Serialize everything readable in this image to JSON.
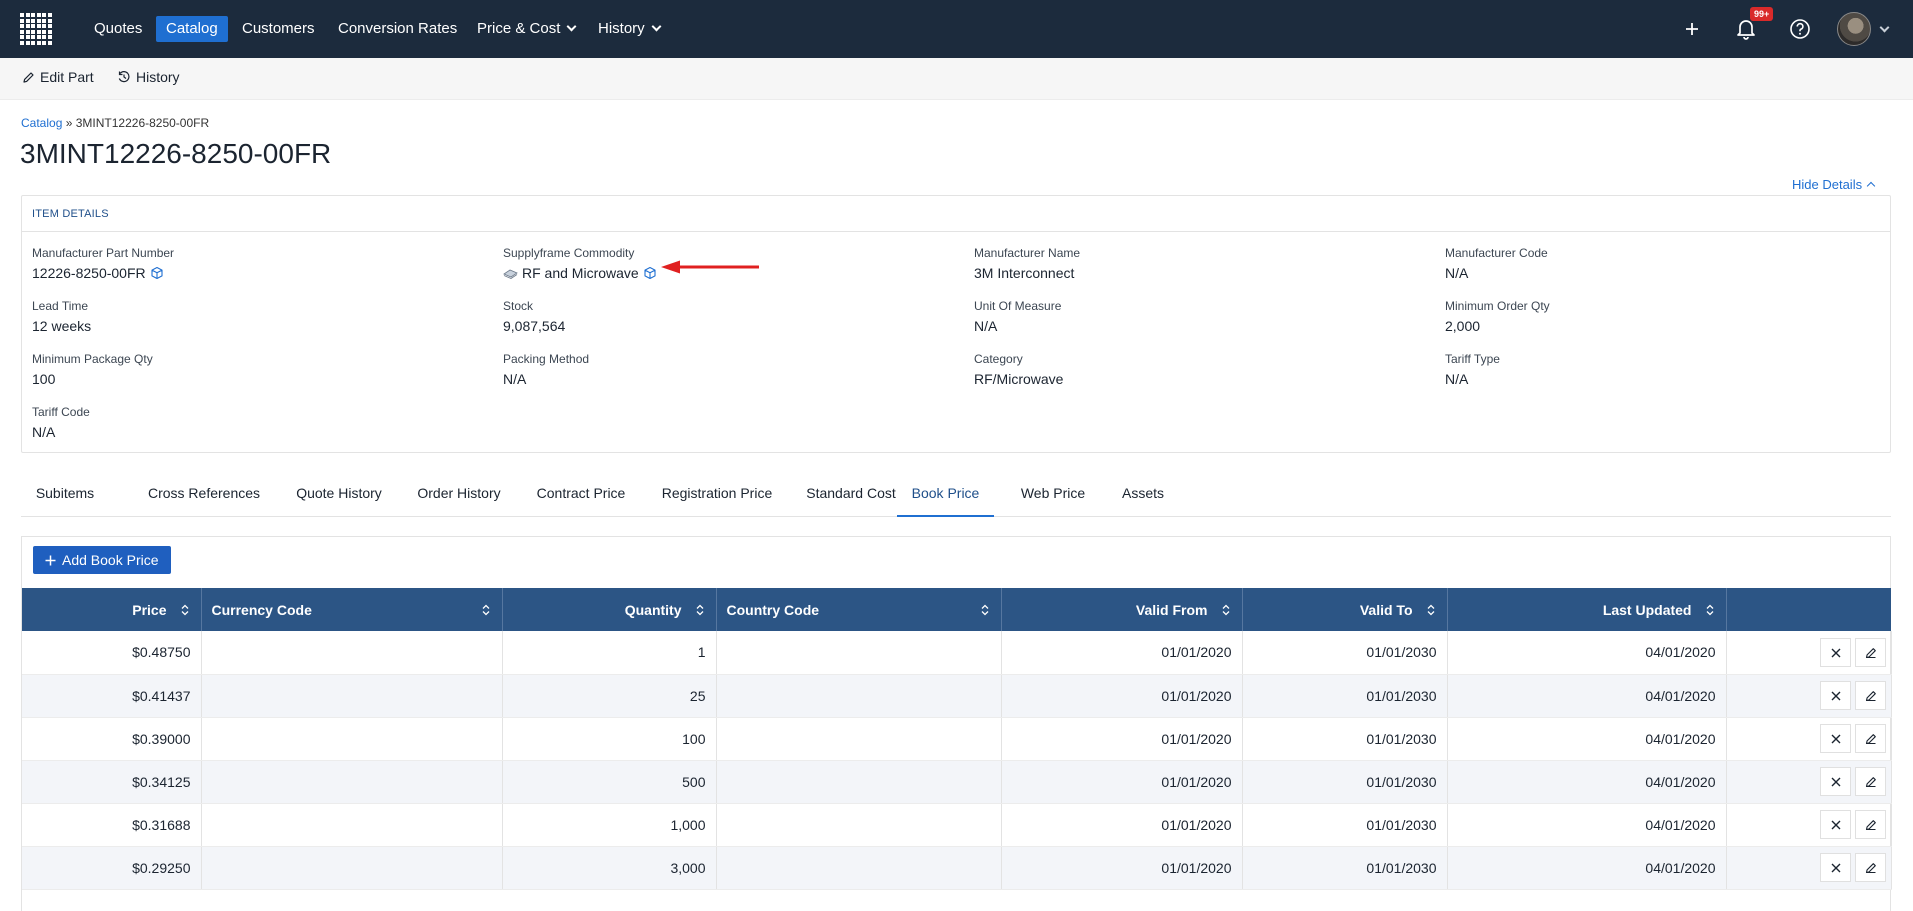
{
  "nav": {
    "items": [
      {
        "label": "Quotes",
        "active": false,
        "dropdown": false
      },
      {
        "label": "Catalog",
        "active": true,
        "dropdown": false
      },
      {
        "label": "Customers",
        "active": false,
        "dropdown": false
      },
      {
        "label": "Conversion Rates",
        "active": false,
        "dropdown": false
      },
      {
        "label": "Price & Cost",
        "active": false,
        "dropdown": true
      },
      {
        "label": "History",
        "active": false,
        "dropdown": true
      }
    ],
    "notification_badge": "99+",
    "icons": [
      "grid-logo-icon",
      "plus-icon",
      "bell-icon",
      "help-icon",
      "avatar",
      "chevron-down-icon"
    ]
  },
  "toolbar": {
    "edit_label": "Edit Part",
    "history_label": "History"
  },
  "breadcrumb": {
    "root": "Catalog",
    "separator": "»",
    "current": "3MINT12226-8250-00FR"
  },
  "page_title": "3MINT12226-8250-00FR",
  "hide_details_label": "Hide Details",
  "details": {
    "heading": "ITEM DETAILS",
    "fields": [
      {
        "label": "Manufacturer Part Number",
        "value": "12226-8250-00FR"
      },
      {
        "label": "Supplyframe Commodity",
        "value": "RF and Microwave"
      },
      {
        "label": "Manufacturer Name",
        "value": "3M Interconnect"
      },
      {
        "label": "Manufacturer Code",
        "value": "N/A"
      },
      {
        "label": "Lead Time",
        "value": "12 weeks"
      },
      {
        "label": "Stock",
        "value": "9,087,564"
      },
      {
        "label": "Unit Of Measure",
        "value": "N/A"
      },
      {
        "label": "Minimum Order Qty",
        "value": "2,000"
      },
      {
        "label": "Minimum Package Qty",
        "value": "100"
      },
      {
        "label": "Packing Method",
        "value": "N/A"
      },
      {
        "label": "Category",
        "value": "RF/Microwave"
      },
      {
        "label": "Tariff Type",
        "value": "N/A"
      },
      {
        "label": "Tariff Code",
        "value": "N/A"
      }
    ]
  },
  "tabs": [
    {
      "label": "Subitems",
      "active": false
    },
    {
      "label": "Cross References",
      "active": false
    },
    {
      "label": "Quote History",
      "active": false
    },
    {
      "label": "Order History",
      "active": false
    },
    {
      "label": "Contract Price",
      "active": false
    },
    {
      "label": "Registration Price",
      "active": false
    },
    {
      "label": "Standard Cost",
      "active": false
    },
    {
      "label": "Book Price",
      "active": true
    },
    {
      "label": "Web Price",
      "active": false
    },
    {
      "label": "Assets",
      "active": false
    }
  ],
  "add_button_label": "Add Book Price",
  "table": {
    "columns": [
      "Price",
      "Currency Code",
      "Quantity",
      "Country Code",
      "Valid From",
      "Valid To",
      "Last Updated"
    ],
    "rows": [
      [
        "$0.48750",
        "",
        "1",
        "",
        "01/01/2020",
        "01/01/2030",
        "04/01/2020"
      ],
      [
        "$0.41437",
        "",
        "25",
        "",
        "01/01/2020",
        "01/01/2030",
        "04/01/2020"
      ],
      [
        "$0.39000",
        "",
        "100",
        "",
        "01/01/2020",
        "01/01/2030",
        "04/01/2020"
      ],
      [
        "$0.34125",
        "",
        "500",
        "",
        "01/01/2020",
        "01/01/2030",
        "04/01/2020"
      ],
      [
        "$0.31688",
        "",
        "1,000",
        "",
        "01/01/2020",
        "01/01/2030",
        "04/01/2020"
      ],
      [
        "$0.29250",
        "",
        "3,000",
        "",
        "01/01/2020",
        "01/01/2030",
        "04/01/2020"
      ]
    ]
  },
  "colors": {
    "nav_bg": "#1c2b3d",
    "accent": "#1f6fd1",
    "table_header": "#2c5585",
    "badge": "#d92a2a",
    "annotation_arrow": "#e02020"
  }
}
